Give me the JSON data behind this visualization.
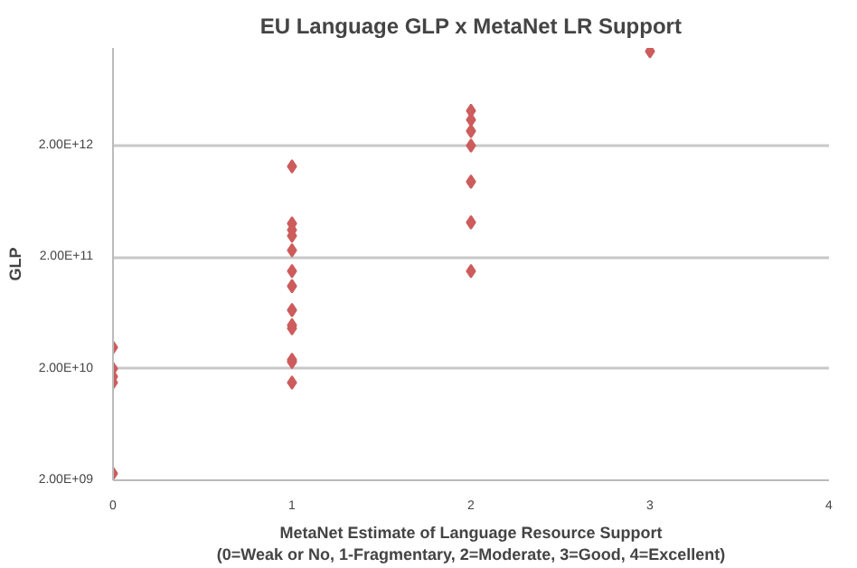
{
  "chart_data": {
    "type": "scatter",
    "title": "EU Language GLP x MetaNet LR Support",
    "xlabel": "MetaNet Estimate of Language Resource Support\n(0=Weak or No, 1-Fragmentary, 2=Moderate, 3=Good, 4=Excellent)",
    "ylabel": "GLP",
    "x": [
      0,
      0,
      0,
      0,
      0,
      1,
      1,
      1,
      1,
      1,
      1,
      1,
      1,
      1,
      1,
      1,
      1,
      1,
      2,
      2,
      2,
      2,
      2,
      2,
      2,
      3
    ],
    "values": [
      31000000000.0,
      20000000000.0,
      17000000000.0,
      15000000000.0,
      2300000000.0,
      1300000000000.0,
      400000000000.0,
      350000000000.0,
      310000000000.0,
      230000000000.0,
      150000000000.0,
      110000000000.0,
      67000000000.0,
      49000000000.0,
      46000000000.0,
      24000000000.0,
      23000000000.0,
      15000000000.0,
      4100000000000.0,
      3400000000000.0,
      2700000000000.0,
      2000000000000.0,
      950000000000.0,
      410000000000.0,
      150000000000.0,
      14000000000000.0
    ],
    "color": "#cd5c5c",
    "marker": "diamond",
    "log": "y",
    "grid": "y",
    "xlim": [
      0,
      4
    ],
    "xticks": [
      0,
      1,
      2,
      3,
      4
    ],
    "ylim": [
      2000000000.0,
      15000000000000.0
    ],
    "yticks": [
      {
        "value": 2000000000.0,
        "label": "2.00E+09"
      },
      {
        "value": 20000000000.0,
        "label": "2.00E+10"
      },
      {
        "value": 200000000000.0,
        "label": "2.00E+11"
      },
      {
        "value": 2000000000000.0,
        "label": "2.00E+12"
      }
    ]
  }
}
